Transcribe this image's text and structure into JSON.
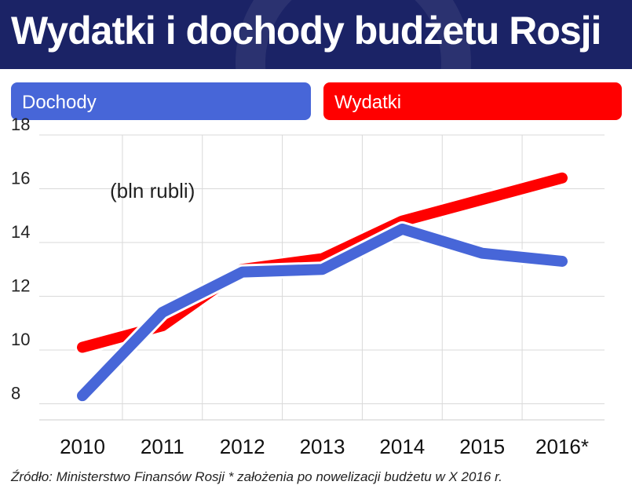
{
  "title": "Wydatki i dochody budżetu Rosji",
  "colors": {
    "header_bg": "#1b2366",
    "dochody": "#4766d8",
    "wydatki": "#ff0000"
  },
  "legend": {
    "dochody": "Dochody",
    "wydatki": "Wydatki"
  },
  "source": "Źródło: Ministerstwo Finansów Rosji   * założenia po nowelizacji budżetu w X 2016 r.",
  "chart_data": {
    "type": "line",
    "unit_label": "(bln rubli)",
    "x": [
      "2010",
      "2011",
      "2012",
      "2013",
      "2014",
      "2015",
      "2016*"
    ],
    "ylim": [
      7.4,
      18
    ],
    "yticks": [
      8,
      10,
      12,
      14,
      16,
      18
    ],
    "grid": true,
    "legend_position": "top",
    "series": [
      {
        "name": "Dochody",
        "color": "#4766d8",
        "values": [
          8.3,
          11.4,
          12.9,
          13.0,
          14.5,
          13.6,
          13.3
        ]
      },
      {
        "name": "Wydatki",
        "color": "#ff0000",
        "values": [
          10.1,
          10.9,
          13.0,
          13.4,
          14.8,
          15.6,
          16.4
        ]
      }
    ]
  }
}
